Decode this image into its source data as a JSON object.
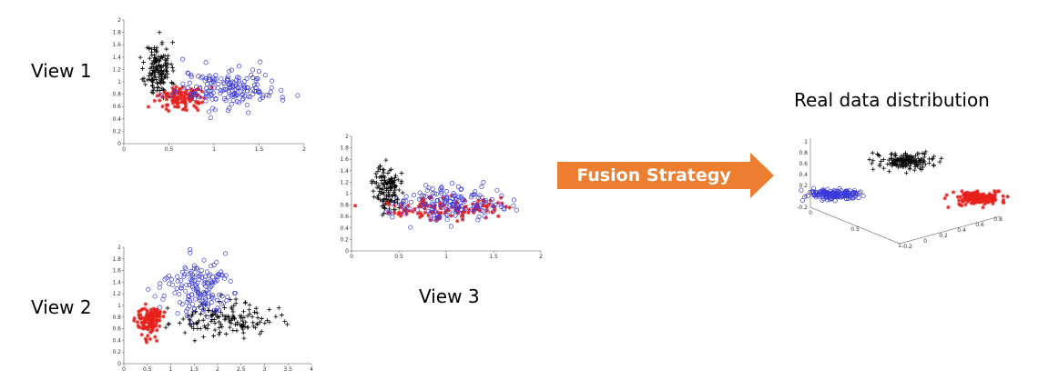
{
  "labels": {
    "view1": "View 1",
    "view2": "View 2",
    "view3": "View 3",
    "real": "Real data distribution"
  },
  "arrow": {
    "label": "Fusion Strategy",
    "color": "#ED7D31"
  },
  "colors": {
    "black_class": "#000000",
    "red_class": "#E8201C",
    "blue_class": "#3A3ADB"
  },
  "chart_data": [
    {
      "type": "scatter",
      "xticks": [
        "0",
        "0.5",
        "1",
        "1.5",
        "2"
      ],
      "yticks": [
        "0",
        "0.2",
        "0.4",
        "0.6",
        "0.8",
        "1",
        "1.2",
        "1.4",
        "1.6",
        "1.8",
        "2"
      ],
      "xlim": [
        0,
        2
      ],
      "ylim": [
        0,
        2
      ],
      "series": [
        {
          "marker": "+",
          "color": "#000000",
          "n": 150,
          "mean": [
            0.38,
            1.2
          ],
          "sd": [
            0.07,
            0.22
          ]
        },
        {
          "marker": "*",
          "color": "#E8201C",
          "n": 120,
          "mean": [
            0.65,
            0.75
          ],
          "sd": [
            0.14,
            0.09
          ]
        },
        {
          "marker": "o",
          "color": "#3A3ADB",
          "n": 170,
          "mean": [
            1.15,
            0.9
          ],
          "sd": [
            0.28,
            0.16
          ]
        }
      ]
    },
    {
      "type": "scatter",
      "xticks": [
        "0",
        "0.5",
        "1",
        "1.5",
        "2",
        "2.5",
        "3",
        "3.5",
        "4"
      ],
      "yticks": [
        "0",
        "0.2",
        "0.4",
        "0.6",
        "0.8",
        "1",
        "1.2",
        "1.4",
        "1.6",
        "1.8",
        "2"
      ],
      "xlim": [
        0,
        4
      ],
      "ylim": [
        0,
        2
      ],
      "series": [
        {
          "marker": "+",
          "color": "#000000",
          "n": 150,
          "mean": [
            2.1,
            0.75
          ],
          "sd": [
            0.55,
            0.14
          ]
        },
        {
          "marker": "*",
          "color": "#E8201C",
          "n": 130,
          "mean": [
            0.55,
            0.75
          ],
          "sd": [
            0.13,
            0.13
          ]
        },
        {
          "marker": "o",
          "color": "#3A3ADB",
          "n": 160,
          "mean": [
            1.55,
            1.3
          ],
          "sd": [
            0.35,
            0.25
          ]
        }
      ]
    },
    {
      "type": "scatter",
      "xticks": [
        "0",
        "0.5",
        "1",
        "1.5",
        "2"
      ],
      "yticks": [
        "0",
        "0.2",
        "0.4",
        "0.6",
        "0.8",
        "1",
        "1.2",
        "1.4",
        "1.6",
        "1.8",
        "2"
      ],
      "xlim": [
        0,
        2
      ],
      "ylim": [
        0,
        2
      ],
      "series": [
        {
          "marker": "+",
          "color": "#000000",
          "n": 130,
          "mean": [
            0.38,
            1.1
          ],
          "sd": [
            0.07,
            0.2
          ]
        },
        {
          "marker": "*",
          "color": "#E8201C",
          "n": 130,
          "mean": [
            0.95,
            0.75
          ],
          "sd": [
            0.3,
            0.1
          ]
        },
        {
          "marker": "o",
          "color": "#3A3ADB",
          "n": 160,
          "mean": [
            1.05,
            0.85
          ],
          "sd": [
            0.3,
            0.15
          ]
        }
      ]
    },
    {
      "type": "scatter",
      "xticks": [
        "0",
        "0.5",
        "1"
      ],
      "yticks": [
        "-0.2",
        "0",
        "0.2",
        "0.4",
        "0.6",
        "0.8",
        "1"
      ],
      "zticks": [
        "-0.2",
        "0",
        "0.2",
        "0.4",
        "0.6",
        "0.8"
      ],
      "xlim": [
        0,
        1
      ],
      "ylim": [
        -0.2,
        1
      ],
      "series": [
        {
          "marker": "o",
          "color": "#3A3ADB",
          "n": 170,
          "mean": [
            0.13,
            0.03
          ],
          "sd": [
            0.08,
            0.05
          ]
        },
        {
          "marker": "+",
          "color": "#000000",
          "n": 160,
          "mean": [
            0.5,
            0.65
          ],
          "sd": [
            0.07,
            0.07
          ]
        },
        {
          "marker": "*",
          "color": "#E8201C",
          "n": 170,
          "mean": [
            0.88,
            -0.04
          ],
          "sd": [
            0.06,
            0.06
          ]
        }
      ]
    }
  ]
}
